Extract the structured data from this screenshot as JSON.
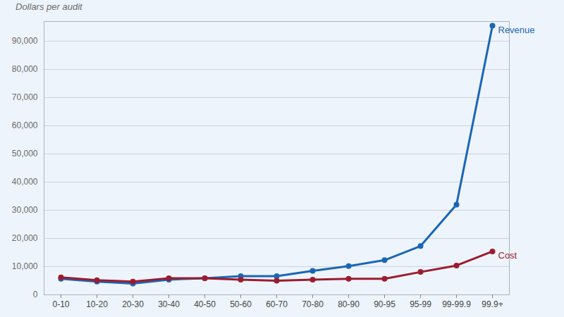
{
  "chart_data": {
    "type": "line",
    "y_label": "Dollars per audit",
    "categories": [
      "0-10",
      "10-20",
      "20-30",
      "30-40",
      "40-50",
      "50-60",
      "60-70",
      "70-80",
      "80-90",
      "90-95",
      "95-99",
      "99-99.9",
      "99.9+"
    ],
    "series": [
      {
        "name": "Revenue",
        "color": "#1a66b5",
        "marker": "circle",
        "values": [
          5700,
          4700,
          4000,
          5400,
          5900,
          6600,
          6600,
          8500,
          10200,
          12300,
          17300,
          32000,
          95500
        ]
      },
      {
        "name": "Cost",
        "color": "#9b1c2e",
        "marker": "circle",
        "values": [
          6200,
          5200,
          4700,
          5900,
          5900,
          5400,
          5000,
          5400,
          5700,
          5700,
          8100,
          10400,
          15400
        ]
      }
    ],
    "ylim": [
      0,
      97000
    ],
    "yticks": [
      0,
      {
        "value": 10000,
        "label": "10,000"
      },
      {
        "value": 20000,
        "label": "20,000"
      },
      {
        "value": 30000,
        "label": "30,000"
      },
      {
        "value": 40000,
        "label": "40,000"
      },
      {
        "value": 50000,
        "label": "50,000"
      },
      {
        "value": 60000,
        "label": "60,000"
      },
      {
        "value": 70000,
        "label": "70,000"
      },
      {
        "value": 80000,
        "label": "80,000"
      },
      {
        "value": 90000,
        "label": "90,000"
      }
    ],
    "grid": true
  }
}
